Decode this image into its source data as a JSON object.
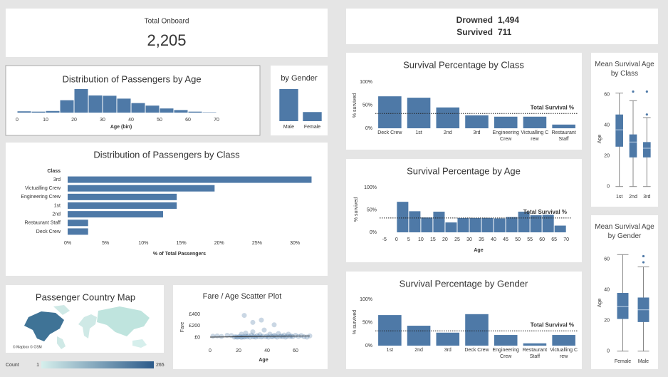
{
  "kpis": {
    "total_label": "Total Onboard",
    "total": {
      "value": 2205,
      "label": "2,205"
    },
    "drowned_label": "Drowned",
    "drowned": {
      "value": 1494,
      "label": "1,494"
    },
    "survived_label": "Survived",
    "survived": 711
  },
  "chart_data": [
    {
      "type": "histogram",
      "title": "Distribution of Passengers by Age",
      "xlabel": "Age (bin)",
      "bins": [
        0,
        5,
        10,
        15,
        20,
        25,
        30,
        35,
        40,
        45,
        50,
        55,
        60,
        65,
        70
      ],
      "values": [
        20,
        15,
        25,
        195,
        370,
        270,
        265,
        220,
        150,
        110,
        65,
        40,
        15,
        5
      ],
      "color": "#4e79a7",
      "xlim": [
        -2,
        75
      ],
      "xticks": [
        0,
        10,
        20,
        30,
        40,
        50,
        60,
        70
      ]
    },
    {
      "type": "bar",
      "title": "by Gender",
      "categories": [
        "Male",
        "Female"
      ],
      "values": [
        1718,
        487
      ],
      "color": "#4e79a7"
    },
    {
      "type": "hbar",
      "title": "Distribution of Passengers by Class",
      "category_header": "Class",
      "categories": [
        "3rd",
        "Victualling Crew",
        "Engineering Crew",
        "1st",
        "2nd",
        "Restaurant Staff",
        "Deck Crew"
      ],
      "values": [
        32.2,
        19.4,
        14.4,
        14.4,
        12.6,
        2.7,
        2.7
      ],
      "color": "#4e79a7",
      "xlabel": "% of Total Passengers",
      "xlim": [
        0,
        33
      ],
      "xticks": [
        {
          "value": 0,
          "label": "0%"
        },
        {
          "value": 5,
          "label": "5%"
        },
        {
          "value": 10,
          "label": "10%"
        },
        {
          "value": 15,
          "label": "15%"
        },
        {
          "value": 20,
          "label": "20%"
        },
        {
          "value": 25,
          "label": "25%"
        },
        {
          "value": 30,
          "label": "30%"
        }
      ]
    },
    {
      "type": "bar",
      "title": "Survival Percentage by Class",
      "ylabel": "% survived",
      "categories": [
        "Deck Crew",
        "1st",
        "2nd",
        "3rd",
        "Engineering Crew",
        "Victualling Crew",
        "Restaurant Staff"
      ],
      "values": [
        69,
        66,
        45,
        28,
        25,
        25,
        8
      ],
      "color": "#4e79a7",
      "ylim": [
        0,
        100
      ],
      "yticks": [
        {
          "value": 0,
          "label": "0%"
        },
        {
          "value": 50,
          "label": "50%"
        },
        {
          "value": 100,
          "label": "100%"
        }
      ],
      "reference": {
        "label": "Total Survival %",
        "value": 32
      }
    },
    {
      "type": "histogram",
      "title": "Survival Percentage by Age",
      "ylabel": "% survived",
      "xlabel": "Age",
      "bins": [
        0,
        5,
        10,
        15,
        20,
        25,
        30,
        35,
        40,
        45,
        50,
        55,
        60,
        65,
        70
      ],
      "values": [
        68,
        47,
        33,
        46,
        22,
        32,
        32,
        32,
        31,
        34,
        46,
        38,
        39,
        15
      ],
      "color": "#4e79a7",
      "xlim": [
        -7,
        72
      ],
      "xticks": [
        -5,
        0,
        5,
        10,
        15,
        20,
        25,
        30,
        35,
        40,
        45,
        50,
        55,
        60,
        65,
        70
      ],
      "ylim": [
        0,
        100
      ],
      "yticks": [
        {
          "value": 0,
          "label": "0%"
        },
        {
          "value": 50,
          "label": "50%"
        },
        {
          "value": 100,
          "label": "100%"
        }
      ],
      "reference": {
        "label": "Total Survival %",
        "value": 32
      }
    },
    {
      "type": "bar",
      "title": "Survival Percentage by Gender",
      "ylabel": "% survived",
      "categories": [
        "1st",
        "2nd",
        "3rd",
        "Deck Crew",
        "Engineering Crew",
        "Restaurant Staff",
        "Victualling Crew"
      ],
      "values": [
        66,
        43,
        28,
        68,
        23,
        5,
        23
      ],
      "color": "#4e79a7",
      "ylim": [
        0,
        100
      ],
      "yticks": [
        {
          "value": 0,
          "label": "0%"
        },
        {
          "value": 50,
          "label": "50%"
        },
        {
          "value": 100,
          "label": "100%"
        }
      ],
      "reference": {
        "label": "Total Survival %",
        "value": 32
      }
    },
    {
      "type": "box",
      "title": "Mean Survival Age by Class",
      "ylabel": "Age",
      "ylim": [
        -2,
        65
      ],
      "yticks": [
        0,
        20,
        40,
        60
      ],
      "color": "#4e79a7",
      "boxes": [
        {
          "name": "1st",
          "min": 0,
          "q1": 26,
          "median": 37,
          "q3": 47,
          "max": 61,
          "outliers": []
        },
        {
          "name": "2nd",
          "min": 0,
          "q1": 19,
          "median": 29,
          "q3": 34,
          "max": 56,
          "outliers": [
            62
          ]
        },
        {
          "name": "3rd",
          "min": 0,
          "q1": 19,
          "median": 25,
          "q3": 29,
          "max": 45,
          "outliers": [
            62,
            47
          ]
        }
      ]
    },
    {
      "type": "box",
      "title": "Mean Survival Age by Gender",
      "ylabel": "Age",
      "ylim": [
        -2,
        65
      ],
      "yticks": [
        0,
        20,
        40,
        60
      ],
      "color": "#4e79a7",
      "boxes": [
        {
          "name": "Female",
          "min": 0,
          "q1": 21,
          "median": 29,
          "q3": 38,
          "max": 63,
          "outliers": []
        },
        {
          "name": "Male",
          "min": 0,
          "q1": 19,
          "median": 27,
          "q3": 35,
          "max": 55,
          "outliers": [
            62,
            58
          ]
        }
      ]
    },
    {
      "type": "map",
      "title": "Passenger Country Map",
      "attribution": "© Mapbox © OSM",
      "legend_title": "Count",
      "legend_range": [
        1,
        265
      ],
      "colors": [
        "#d6efec",
        "#2c5a8a"
      ]
    },
    {
      "type": "scatter",
      "title": "Fare / Age Scatter Plot",
      "xlabel": "Age",
      "ylabel": "Fare",
      "x": [
        2,
        5,
        8,
        12,
        15,
        17,
        18,
        19,
        20,
        21,
        22,
        22,
        23,
        24,
        25,
        25,
        26,
        27,
        28,
        29,
        30,
        30,
        31,
        32,
        33,
        34,
        35,
        36,
        37,
        38,
        39,
        40,
        41,
        42,
        43,
        44,
        45,
        46,
        47,
        48,
        49,
        50,
        51,
        52,
        53,
        54,
        55,
        56,
        57,
        58,
        60,
        62,
        64,
        66,
        68,
        70,
        24,
        30,
        36,
        45
      ],
      "y": [
        25,
        30,
        20,
        40,
        35,
        10,
        15,
        8,
        12,
        20,
        5,
        60,
        15,
        10,
        25,
        80,
        12,
        30,
        8,
        45,
        15,
        100,
        20,
        10,
        35,
        15,
        50,
        12,
        25,
        130,
        15,
        30,
        10,
        60,
        20,
        15,
        40,
        25,
        10,
        70,
        20,
        30,
        15,
        45,
        10,
        25,
        60,
        20,
        30,
        15,
        40,
        20,
        35,
        15,
        10,
        30,
        380,
        260,
        300,
        220
      ],
      "xlim": [
        -5,
        80
      ],
      "ylim": [
        -100,
        460
      ],
      "xticks": [
        0,
        20,
        40,
        60
      ],
      "yticks": [
        {
          "value": 0,
          "label": "£0"
        },
        {
          "value": 200,
          "label": "£200"
        },
        {
          "value": 400,
          "label": "£400"
        }
      ],
      "trend": {
        "x": [
          0,
          70
        ],
        "y": [
          10,
          30
        ]
      },
      "color": "#4e79a7"
    }
  ]
}
